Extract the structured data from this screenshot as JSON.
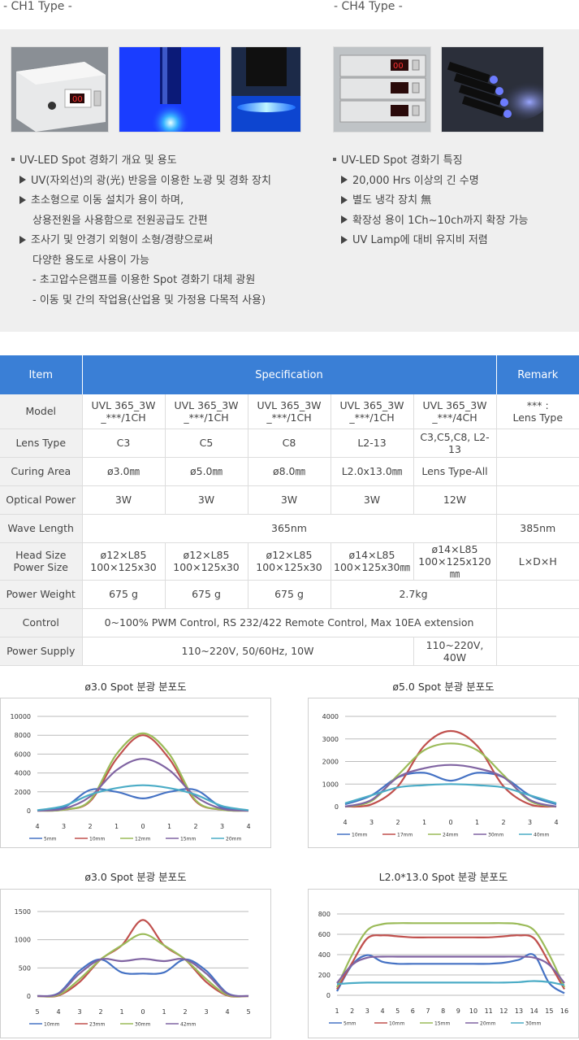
{
  "header": {
    "ch1": "- CH1 Type -",
    "ch4": "- CH4 Type -"
  },
  "intro": {
    "left": {
      "title": "UV-LED Spot 경화기 개요 및 용도",
      "lines": [
        {
          "kind": "item",
          "text": "UV(자외선)의 광(光) 반응을 이용한 노광 및 경화 장치"
        },
        {
          "kind": "item",
          "text": "초소형으로  이동 설치가 용이 하며,"
        },
        {
          "kind": "cont",
          "text": "상용전원을 사용함으로 전원공급도 간편"
        },
        {
          "kind": "item",
          "text": "조사기 및 안경기 외형이 소형/경량으로써"
        },
        {
          "kind": "cont",
          "text": "다양한 용도로 사용이 가능"
        },
        {
          "kind": "sub",
          "text": "- 초고압수은램프를 이용한 Spot 경화기 대체 광원"
        },
        {
          "kind": "sub",
          "text": "- 이동 및 간의 작업용(산업용 및 가정용 다목적 사용)"
        }
      ]
    },
    "right": {
      "title": "UV-LED Spot 경화기 특징",
      "lines": [
        {
          "kind": "item",
          "text": "20,000 Hrs 이상의 긴 수명"
        },
        {
          "kind": "item",
          "text": "별도 냉각 장치 無"
        },
        {
          "kind": "item",
          "text": "확장성 용이 1Ch~10ch까지 확장 가능"
        },
        {
          "kind": "item",
          "text": "UV Lamp에 대비 유지비 저렴"
        }
      ]
    },
    "device_display": {
      "ch1": "00",
      "ch4": "00"
    }
  },
  "table": {
    "headers": {
      "item": "Item",
      "spec": "Specification",
      "remark": "Remark"
    },
    "rows": {
      "model": {
        "label": "Model",
        "c1": "UVL 365_3W\n_***/1CH",
        "c2": "UVL 365_3W\n_***/1CH",
        "c3": "UVL 365_3W\n_***/1CH",
        "c4": "UVL 365_3W\n_***/1CH",
        "c5": "UVL 365_3W\n_***/4CH",
        "remark": "*** :\nLens Type"
      },
      "lens": {
        "label": "Lens Type",
        "c1": "C3",
        "c2": "C5",
        "c3": "C8",
        "c4": "L2-13",
        "c5": "C3,C5,C8, L2-13",
        "remark": ""
      },
      "curing": {
        "label": "Curing Area",
        "c1": "ø3.0㎜",
        "c2": "ø5.0㎜",
        "c3": "ø8.0㎜",
        "c4": "L2.0x13.0㎜",
        "c5": "Lens Type-All",
        "remark": ""
      },
      "optical": {
        "label": "Optical Power",
        "c1": "3W",
        "c2": "3W",
        "c3": "3W",
        "c4": "3W",
        "c5": "12W",
        "remark": ""
      },
      "wave": {
        "label": "Wave Length",
        "span": "365nm",
        "remark": "385nm"
      },
      "head": {
        "label": "Head Size\nPower Size",
        "c1": "ø12×L85\n100×125x30",
        "c2": "ø12×L85\n100×125x30",
        "c3": "ø12×L85\n100×125x30",
        "c4": "ø14×L85\n100×125x30㎜",
        "c5": "ø14×L85\n100×125x120㎜",
        "remark": "L×D×H"
      },
      "weight": {
        "label": "Power Weight",
        "c1": "675 g",
        "c2": "675 g",
        "c3": "675 g",
        "c45": "2.7kg",
        "remark": ""
      },
      "control": {
        "label": "Control",
        "span": "0~100% PWM Control, RS 232/422 Remote Control, Max 10EA extension",
        "remark": ""
      },
      "supply": {
        "label": "Power Supply",
        "c14": "110~220V, 50/60Hz, 10W",
        "c5": "110~220V, 40W",
        "remark": ""
      }
    }
  },
  "chart_data": [
    {
      "type": "line",
      "title": "ø3.0 Spot 분광 분포도",
      "x": [
        4,
        3,
        2,
        1,
        0,
        1,
        2,
        3,
        4
      ],
      "ylim": [
        0,
        10000
      ],
      "yticks": [
        0,
        2000,
        4000,
        6000,
        8000,
        10000
      ],
      "grid": true,
      "legend_position": "bottom",
      "series": [
        {
          "name": "5mm",
          "color": "#4572c4",
          "values": [
            20,
            350,
            2200,
            2000,
            1300,
            2000,
            2200,
            350,
            20
          ]
        },
        {
          "name": "10mm",
          "color": "#c0504d",
          "values": [
            0,
            100,
            1000,
            5500,
            8000,
            5500,
            1000,
            100,
            0
          ]
        },
        {
          "name": "12mm",
          "color": "#9bbb59",
          "values": [
            0,
            100,
            1100,
            6000,
            8200,
            6000,
            1100,
            100,
            0
          ]
        },
        {
          "name": "15mm",
          "color": "#8064a2",
          "values": [
            0,
            200,
            1500,
            4300,
            5500,
            4300,
            1500,
            200,
            0
          ]
        },
        {
          "name": "20mm",
          "color": "#4bacc6",
          "values": [
            50,
            500,
            1700,
            2400,
            2700,
            2400,
            1700,
            500,
            50
          ]
        }
      ]
    },
    {
      "type": "line",
      "title": "ø5.0 Spot 분광 분포도",
      "x": [
        4,
        3,
        2,
        1,
        0,
        1,
        2,
        3,
        4
      ],
      "ylim": [
        0,
        4000
      ],
      "yticks": [
        0,
        1000,
        2000,
        3000,
        4000
      ],
      "grid": true,
      "legend_position": "bottom",
      "series": [
        {
          "name": "10mm",
          "color": "#4572c4",
          "values": [
            100,
            500,
            1300,
            1500,
            1150,
            1500,
            1300,
            500,
            100
          ]
        },
        {
          "name": "17mm",
          "color": "#c0504d",
          "values": [
            0,
            100,
            900,
            2700,
            3350,
            2700,
            900,
            100,
            0
          ]
        },
        {
          "name": "24mm",
          "color": "#9bbb59",
          "values": [
            0,
            250,
            1400,
            2500,
            2800,
            2500,
            1400,
            250,
            0
          ]
        },
        {
          "name": "30mm",
          "color": "#8064a2",
          "values": [
            0,
            300,
            1300,
            1700,
            1850,
            1700,
            1300,
            300,
            0
          ]
        },
        {
          "name": "40mm",
          "color": "#4bacc6",
          "values": [
            150,
            500,
            850,
            950,
            1000,
            950,
            850,
            500,
            150
          ]
        }
      ]
    },
    {
      "type": "line",
      "title": "ø3.0 Spot 분광 분포도",
      "x": [
        5,
        4,
        3,
        2,
        1,
        0,
        1,
        2,
        3,
        4,
        5
      ],
      "ylim": [
        0,
        1500
      ],
      "yticks": [
        0,
        500,
        1000,
        1500
      ],
      "grid": true,
      "legend_position": "bottom",
      "series": [
        {
          "name": "10mm",
          "color": "#4572c4",
          "values": [
            0,
            50,
            450,
            650,
            420,
            400,
            420,
            650,
            450,
            50,
            0
          ]
        },
        {
          "name": "23mm",
          "color": "#c0504d",
          "values": [
            0,
            10,
            250,
            650,
            900,
            1350,
            900,
            650,
            250,
            10,
            0
          ]
        },
        {
          "name": "30mm",
          "color": "#9bbb59",
          "values": [
            0,
            20,
            300,
            650,
            900,
            1100,
            900,
            650,
            300,
            20,
            0
          ]
        },
        {
          "name": "42mm",
          "color": "#8064a2",
          "values": [
            0,
            40,
            400,
            650,
            620,
            660,
            620,
            650,
            400,
            40,
            0
          ]
        }
      ]
    },
    {
      "type": "line",
      "title": "L2.0*13.0 Spot 분광 분포도",
      "x": [
        1,
        2,
        3,
        4,
        5,
        6,
        7,
        8,
        9,
        10,
        11,
        12,
        13,
        14,
        15,
        16
      ],
      "ylim": [
        0,
        800
      ],
      "yticks": [
        0,
        200,
        400,
        600,
        800
      ],
      "grid": true,
      "legend_position": "bottom",
      "series": [
        {
          "name": "5mm",
          "color": "#4572c4",
          "values": [
            40,
            300,
            395,
            330,
            310,
            310,
            310,
            310,
            310,
            310,
            310,
            320,
            350,
            395,
            120,
            20
          ]
        },
        {
          "name": "10mm",
          "color": "#c0504d",
          "values": [
            60,
            320,
            560,
            590,
            580,
            570,
            570,
            570,
            570,
            570,
            570,
            580,
            590,
            560,
            320,
            60
          ]
        },
        {
          "name": "15mm",
          "color": "#9bbb59",
          "values": [
            80,
            400,
            640,
            700,
            710,
            710,
            710,
            710,
            710,
            710,
            710,
            710,
            700,
            640,
            400,
            80
          ]
        },
        {
          "name": "20mm",
          "color": "#8064a2",
          "values": [
            120,
            300,
            370,
            380,
            380,
            380,
            380,
            380,
            380,
            380,
            380,
            380,
            380,
            370,
            300,
            120
          ]
        },
        {
          "name": "30mm",
          "color": "#4bacc6",
          "values": [
            110,
            120,
            125,
            125,
            125,
            125,
            125,
            125,
            125,
            125,
            125,
            125,
            130,
            140,
            130,
            100
          ]
        }
      ]
    }
  ]
}
